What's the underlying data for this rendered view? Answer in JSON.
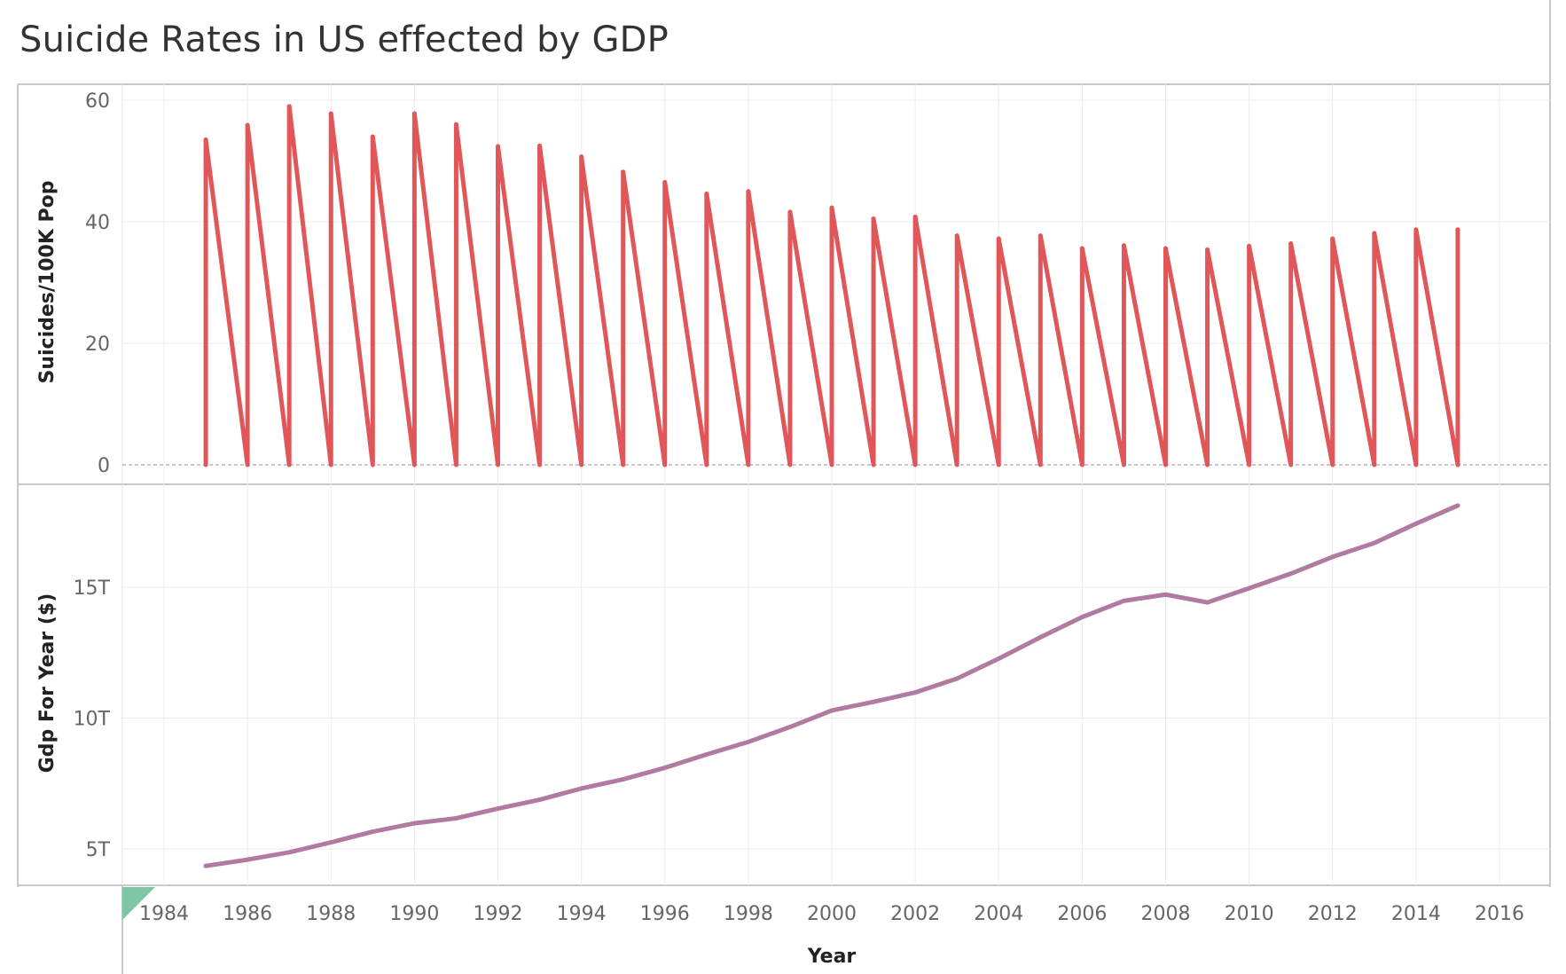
{
  "chart_data": {
    "type": "line",
    "title": "Suicide Rates in US effected by GDP",
    "xlabel": "Year",
    "x_ticks": [
      "1984",
      "1986",
      "1988",
      "1990",
      "1992",
      "1994",
      "1996",
      "1998",
      "2000",
      "2002",
      "2004",
      "2006",
      "2008",
      "2010",
      "2012",
      "2014",
      "2016"
    ],
    "xlim": [
      1982.9,
      2017
    ],
    "panels": [
      {
        "name": "suicides",
        "ylabel": "Suicides/100K Pop",
        "ylim": [
          0,
          60
        ],
        "y_ticks": [
          "0",
          "20",
          "40",
          "60"
        ],
        "y_tick_values": [
          0,
          20,
          40,
          60
        ],
        "color": "#e15759",
        "series": [
          {
            "x": [
              1985,
              1986,
              1987,
              1988,
              1989,
              1990,
              1991,
              1992,
              1993,
              1994,
              1995,
              1996,
              1997,
              1998,
              1999,
              2000,
              2001,
              2002,
              2003,
              2004,
              2005,
              2006,
              2007,
              2008,
              2009,
              2010,
              2011,
              2012,
              2013,
              2014,
              2015
            ],
            "values": [
              53.5,
              55.9,
              59,
              57.8,
              54,
              57.8,
              56,
              52.4,
              52.5,
              50.7,
              48.2,
              46.5,
              44.6,
              45,
              41.6,
              42.3,
              40.5,
              40.8,
              37.7,
              37.2,
              37.7,
              35.6,
              36.1,
              35.6,
              35.4,
              36,
              36.4,
              37.2,
              38.1,
              38.7,
              38.7
            ]
          }
        ]
      },
      {
        "name": "gdp",
        "ylabel": "Gdp For Year ($)",
        "ylim": [
          3.6,
          19.6
        ],
        "y_ticks": [
          "5T",
          "10T",
          "15T"
        ],
        "y_tick_values": [
          5,
          10,
          15
        ],
        "color": "#b07aa1",
        "series": [
          {
            "x": [
              1985,
              1986,
              1987,
              1988,
              1989,
              1990,
              1991,
              1992,
              1993,
              1994,
              1995,
              1996,
              1997,
              1998,
              1999,
              2000,
              2001,
              2002,
              2003,
              2004,
              2005,
              2006,
              2007,
              2008,
              2009,
              2010,
              2011,
              2012,
              2013,
              2014,
              2015
            ],
            "values": [
              4.35,
              4.59,
              4.87,
              5.25,
              5.66,
              5.98,
              6.17,
              6.54,
              6.88,
              7.31,
              7.66,
              8.1,
              8.61,
              9.09,
              9.66,
              10.29,
              10.62,
              10.98,
              11.51,
              12.27,
              13.09,
              13.86,
              14.48,
              14.72,
              14.42,
              14.96,
              15.52,
              16.16,
              16.69,
              17.43,
              18.12
            ]
          }
        ]
      }
    ]
  }
}
